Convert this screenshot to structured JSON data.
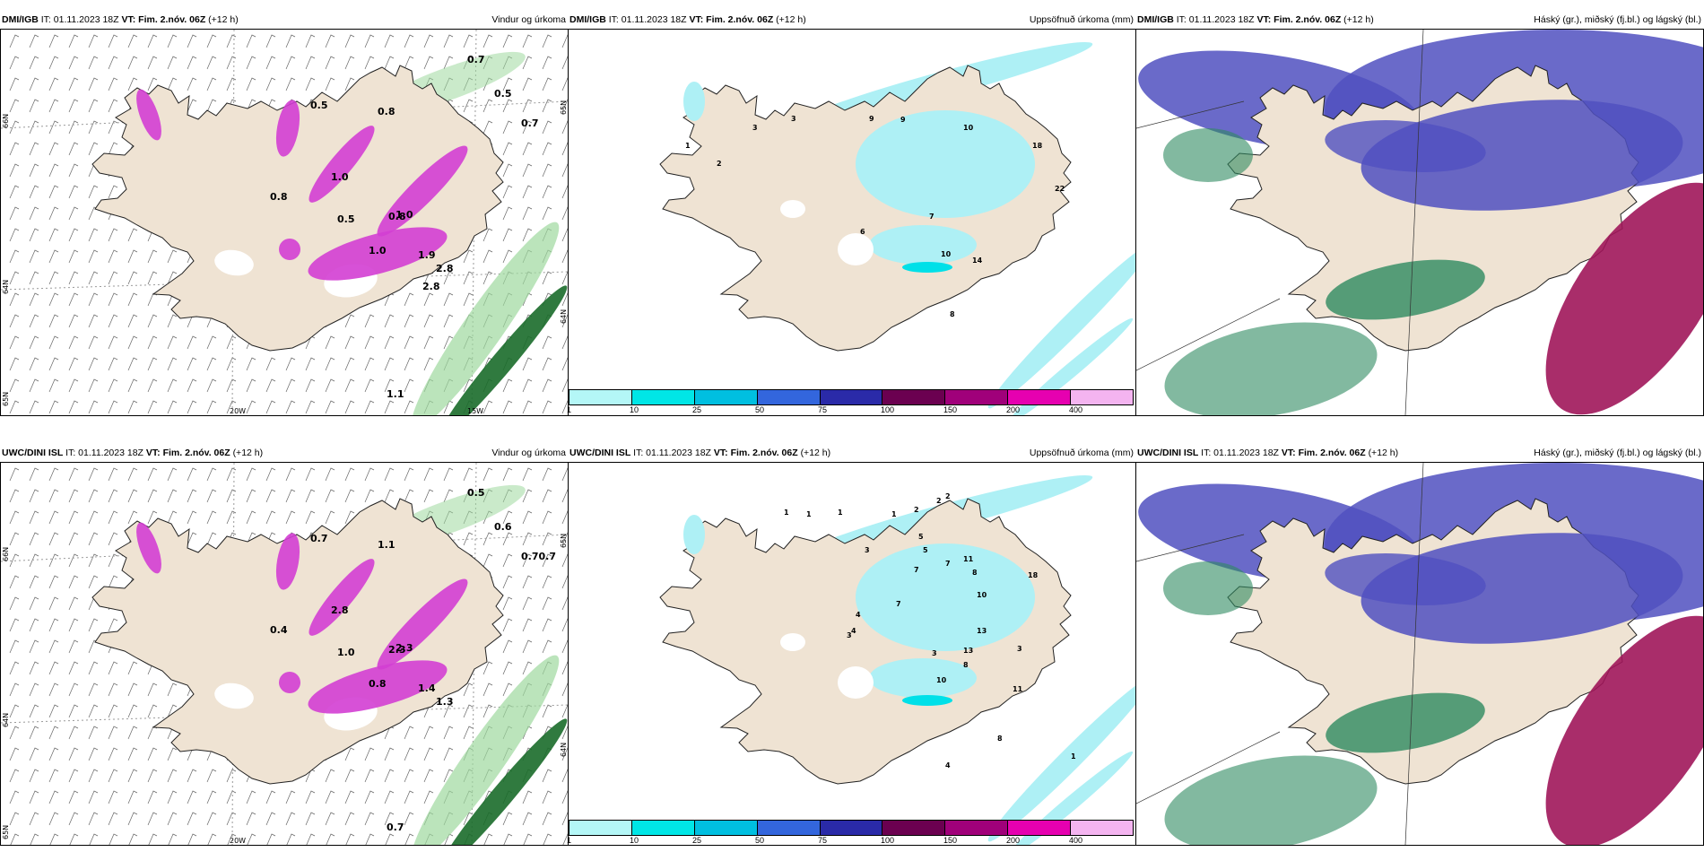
{
  "rows": [
    {
      "model": "DMI/IGB",
      "panels": [
        {
          "model": "DMI/IGB",
          "it": "IT: 01.11.2023 18Z",
          "vt_label": "VT:",
          "vt_value": "Fim. 2.nóv. 06Z",
          "lead": "(+12 h)",
          "title": "Vindur og úrkoma",
          "lat_labels": [
            "66N",
            "64N",
            "65N"
          ],
          "lon_labels": [
            "20W",
            "15W"
          ],
          "lat_right": [
            "65N",
            "64N"
          ],
          "values": [
            "0.7",
            "0.5",
            "0.7",
            "0.5",
            "0.8",
            "1.0",
            "1.0",
            "0.5",
            "0.8",
            "1.9",
            "2.8",
            "1.1",
            "0.8",
            "1.0",
            "2.8"
          ]
        },
        {
          "model": "DMI/IGB",
          "it": "IT: 01.11.2023 18Z",
          "vt_label": "VT:",
          "vt_value": "Fim. 2.nóv. 06Z",
          "lead": "(+12 h)",
          "title": "Uppsöfnuð úrkoma (mm)",
          "values": [
            "3",
            "1",
            "2",
            "3",
            "9",
            "9",
            "10",
            "18",
            "22",
            "7",
            "6",
            "10",
            "14",
            "8"
          ]
        },
        {
          "model": "DMI/IGB",
          "it": "IT: 01.11.2023 18Z",
          "vt_label": "VT:",
          "vt_value": "Fim. 2.nóv. 06Z",
          "lead": "(+12 h)",
          "title": "Háský (gr.), miðský (fj.bl.) og lágský (bl.)"
        }
      ]
    },
    {
      "model": "UWC/DINI ISL",
      "panels": [
        {
          "model": "UWC/DINI ISL",
          "it": "IT: 01.11.2023 18Z",
          "vt_label": "VT:",
          "vt_value": "Fim. 2.nóv. 06Z",
          "lead": "(+12 h)",
          "title": "Vindur og úrkoma",
          "lat_labels": [
            "66N",
            "64N",
            "65N"
          ],
          "lon_labels": [
            "20W"
          ],
          "lat_right": [
            "65N",
            "64N"
          ],
          "values": [
            "0.5",
            "0.6",
            "0.70.7",
            "0.7",
            "1.1",
            "2.8",
            "2.3",
            "1.0",
            "2.3",
            "1.4",
            "1.3",
            "0.7",
            "0.4",
            "0.8"
          ]
        },
        {
          "model": "UWC/DINI ISL",
          "it": "IT: 01.11.2023 18Z",
          "vt_label": "VT:",
          "vt_value": "Fim. 2.nóv. 06Z",
          "lead": "(+12 h)",
          "title": "Uppsöfnuð úrkoma (mm)",
          "values": [
            "1",
            "1",
            "1",
            "1",
            "2",
            "2",
            "2",
            "3",
            "5",
            "5",
            "7",
            "11",
            "7",
            "8",
            "18",
            "10",
            "7",
            "4",
            "3",
            "4",
            "13",
            "13",
            "8",
            "3",
            "3",
            "10",
            "11",
            "8",
            "4",
            "1"
          ]
        },
        {
          "model": "UWC/DINI ISL",
          "it": "IT: 01.11.2023 18Z",
          "vt_label": "VT:",
          "vt_value": "Fim. 2.nóv. 06Z",
          "lead": "(+12 h)",
          "title": "Háský (gr.), miðský (fj.bl.) og lágský (bl.)"
        }
      ]
    }
  ],
  "colorbar": {
    "colors": [
      "#b4f7f7",
      "#00e6e6",
      "#00bfe0",
      "#3366dd",
      "#2a2aa8",
      "#6b0050",
      "#a0007a",
      "#e600b0",
      "#f4b4f0"
    ],
    "ticks": [
      "1",
      "10",
      "25",
      "50",
      "75",
      "100",
      "150",
      "200",
      "400"
    ]
  },
  "colors": {
    "land": "#efe3d3",
    "precip_magenta": "#d33ed3",
    "wind_green": "#9ed89e",
    "wind_green_dark": "#1a6b2a",
    "accum_cyan": "#aef0f5",
    "high_cloud": "#5050c0",
    "mid_cloud": "#a0165a",
    "low_cloud": "#2e8a60"
  }
}
